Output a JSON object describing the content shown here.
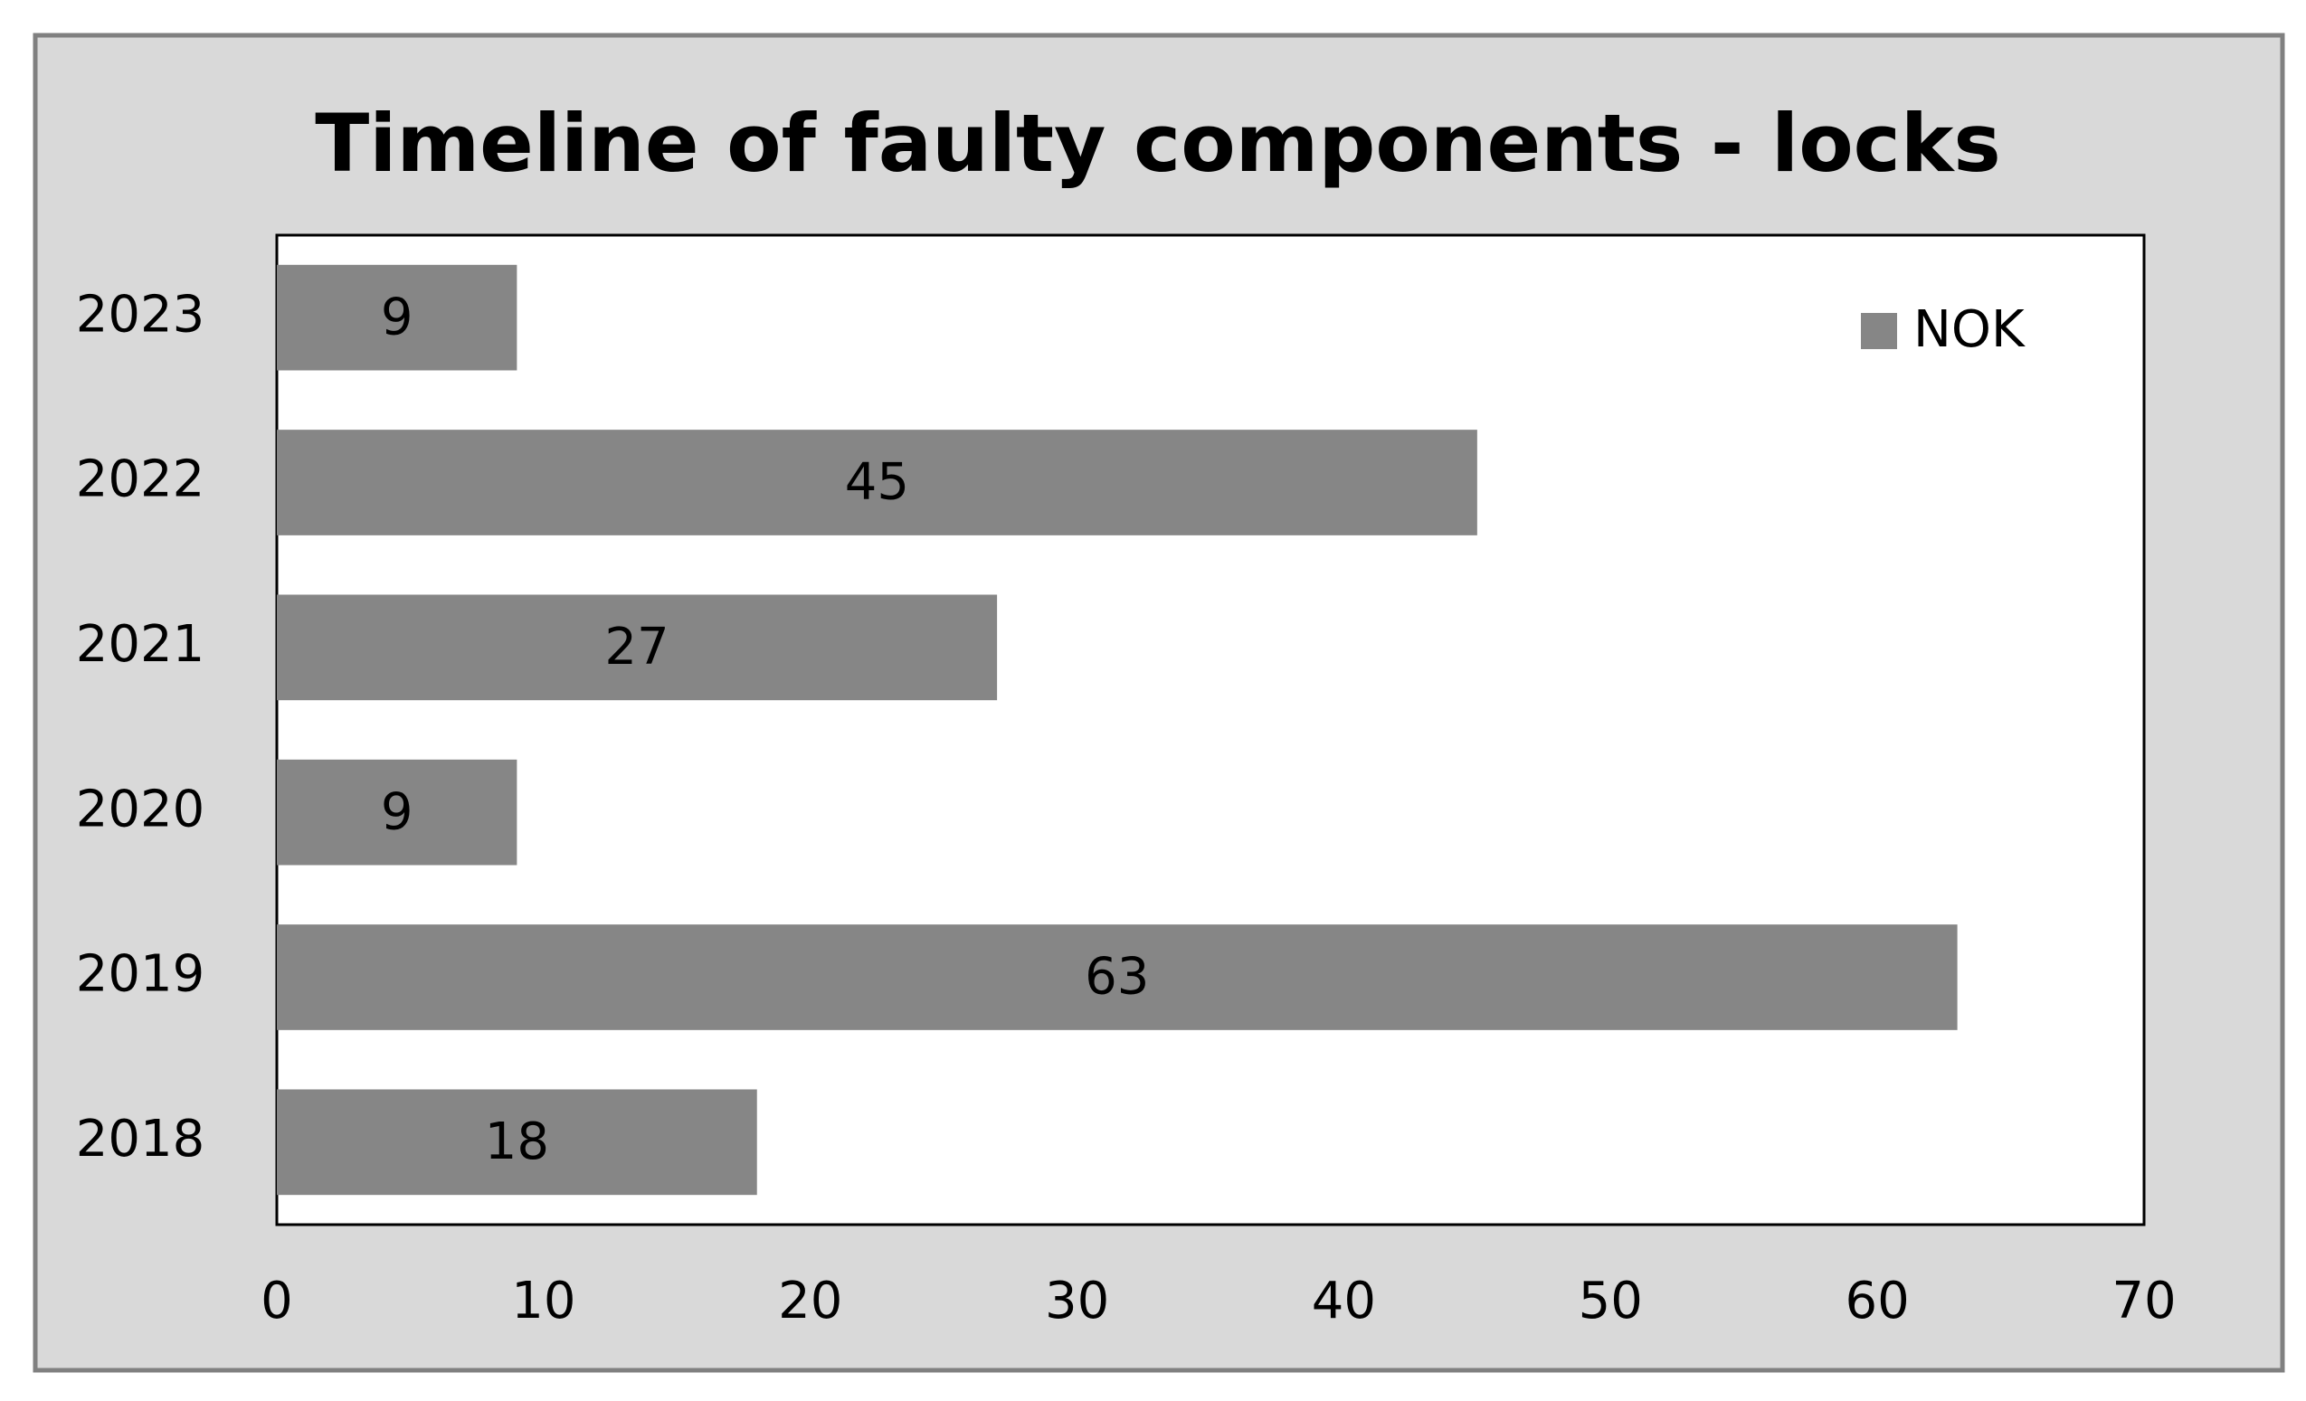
{
  "chart_data": {
    "type": "bar",
    "orientation": "horizontal",
    "title": "Timeline of faulty components - locks",
    "categories": [
      "2018",
      "2019",
      "2020",
      "2021",
      "2022",
      "2023"
    ],
    "series": [
      {
        "name": "NOK",
        "color": "#868686",
        "values": [
          18,
          63,
          9,
          27,
          45,
          9
        ]
      }
    ],
    "xlim": [
      0,
      70
    ],
    "xticks": [
      0,
      10,
      20,
      30,
      40,
      50,
      60,
      70
    ],
    "grid": false,
    "legend": "top-right",
    "data_labels": true
  }
}
